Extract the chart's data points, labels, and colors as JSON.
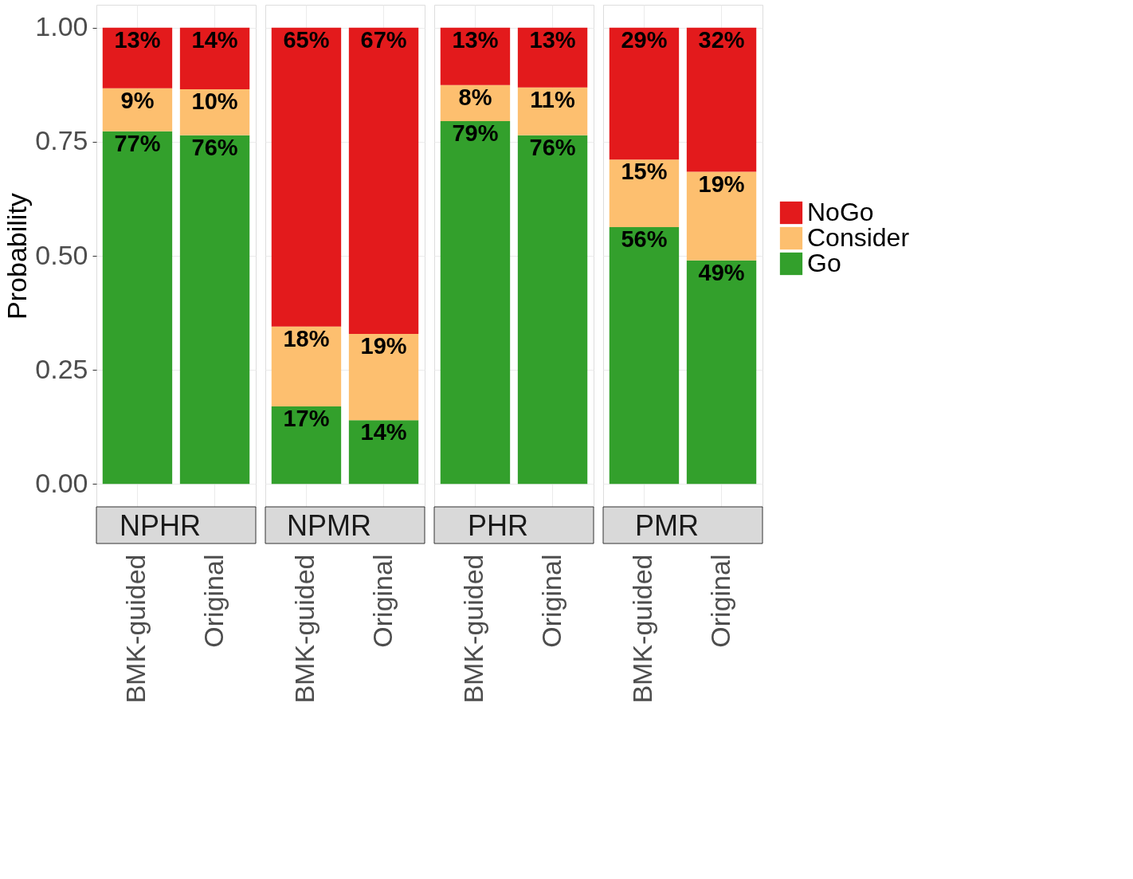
{
  "chart_data": [
    {
      "type": "bar",
      "stacked": true,
      "title": "NPHR",
      "ylabel": "Probability",
      "categories": [
        "BMK-guided",
        "Original"
      ],
      "ylim": [
        -0.05,
        1.05
      ],
      "yticks": [
        {
          "value": 0,
          "label": "0.00"
        },
        {
          "value": 0.25,
          "label": "0.25"
        },
        {
          "value": 0.5,
          "label": "0.50"
        },
        {
          "value": 0.75,
          "label": "0.75"
        },
        {
          "value": 1,
          "label": "1.00"
        }
      ],
      "grid": true,
      "legend": false,
      "series": [
        {
          "color": "#33a02c",
          "values": [
            0.773,
            0.764
          ],
          "value_labels": [
            "77%",
            "76%"
          ]
        },
        {
          "color": "#fdbf6f",
          "values": [
            0.094,
            0.101
          ],
          "value_labels": [
            "9%",
            "10%"
          ]
        },
        {
          "color": "#e31a1c",
          "values": [
            0.133,
            0.135
          ],
          "value_labels": [
            "13%",
            "14%"
          ]
        }
      ]
    },
    {
      "type": "bar",
      "stacked": true,
      "title": "NPMR",
      "categories": [
        "BMK-guided",
        "Original"
      ],
      "ylim": [
        -0.05,
        1.05
      ],
      "tick_labels": "x",
      "grid": true,
      "legend": false,
      "series": [
        {
          "color": "#33a02c",
          "values": [
            0.17,
            0.14
          ],
          "value_labels": [
            "17%",
            "14%"
          ]
        },
        {
          "color": "#fdbf6f",
          "values": [
            0.175,
            0.189
          ],
          "value_labels": [
            "18%",
            "19%"
          ]
        },
        {
          "color": "#e31a1c",
          "values": [
            0.655,
            0.671
          ],
          "value_labels": [
            "65%",
            "67%"
          ]
        }
      ]
    },
    {
      "type": "bar",
      "stacked": true,
      "title": "PHR",
      "categories": [
        "BMK-guided",
        "Original"
      ],
      "ylim": [
        -0.05,
        1.05
      ],
      "tick_labels": "x",
      "grid": true,
      "legend": false,
      "series": [
        {
          "color": "#33a02c",
          "values": [
            0.795,
            0.764
          ],
          "value_labels": [
            "79%",
            "76%"
          ]
        },
        {
          "color": "#fdbf6f",
          "values": [
            0.079,
            0.105
          ],
          "value_labels": [
            "8%",
            "11%"
          ]
        },
        {
          "color": "#e31a1c",
          "values": [
            0.126,
            0.131
          ],
          "value_labels": [
            "13%",
            "13%"
          ]
        }
      ]
    },
    {
      "type": "bar",
      "stacked": true,
      "title": "PMR",
      "categories": [
        "BMK-guided",
        "Original"
      ],
      "ylim": [
        -0.05,
        1.05
      ],
      "tick_labels": "x",
      "grid": true,
      "legend": "right",
      "series": [
        {
          "name": "Go",
          "color": "#33a02c",
          "values": [
            0.563,
            0.49
          ],
          "value_labels": [
            "56%",
            "49%"
          ]
        },
        {
          "name": "Consider",
          "color": "#fdbf6f",
          "values": [
            0.148,
            0.194
          ],
          "value_labels": [
            "15%",
            "19%"
          ]
        },
        {
          "name": "NoGo",
          "color": "#e31a1c",
          "values": [
            0.289,
            0.316
          ],
          "value_labels": [
            "29%",
            "32%"
          ]
        }
      ]
    }
  ]
}
